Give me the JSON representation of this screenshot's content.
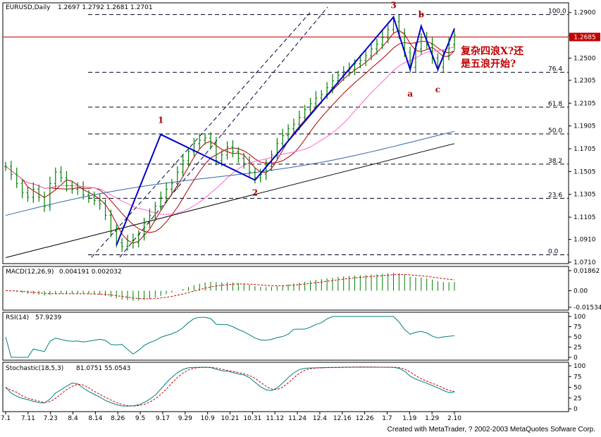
{
  "chart_data": {
    "type": "line",
    "symbol_header": "EURUSD,Daily",
    "ohlc_header": "1.2697 1.2792 1.2681 1.2701",
    "x_ticks": [
      "7.1",
      "7.11",
      "7.23",
      "8.4",
      "8.14",
      "8.26",
      "9.5",
      "9.17",
      "9.29",
      "10.9",
      "10.21",
      "10.31",
      "11.12",
      "11.24",
      "12.4",
      "12.16",
      "12.26",
      "1.7",
      "1.19",
      "1.29",
      "2.10"
    ],
    "main_panel": {
      "ylim": [
        1.071,
        1.296
      ],
      "y_ticks": [
        "1.2900",
        "1.2700",
        "1.2500",
        "1.2305",
        "1.2105",
        "1.1905",
        "1.1705",
        "1.1505",
        "1.1305",
        "1.1105",
        "1.0910",
        "1.0710"
      ],
      "current_price": "1.2685",
      "close_series": [
        1.155,
        1.148,
        1.14,
        1.132,
        1.128,
        1.135,
        1.128,
        1.12,
        1.14,
        1.15,
        1.145,
        1.138,
        1.135,
        1.136,
        1.13,
        1.128,
        1.125,
        1.122,
        1.112,
        1.098,
        1.088,
        1.085,
        1.09,
        1.088,
        1.095,
        1.105,
        1.112,
        1.12,
        1.128,
        1.135,
        1.14,
        1.15,
        1.16,
        1.168,
        1.175,
        1.178,
        1.18,
        1.175,
        1.16,
        1.165,
        1.172,
        1.168,
        1.162,
        1.158,
        1.15,
        1.145,
        1.148,
        1.155,
        1.165,
        1.175,
        1.182,
        1.188,
        1.192,
        1.198,
        1.205,
        1.21,
        1.215,
        1.218,
        1.224,
        1.23,
        1.235,
        1.238,
        1.24,
        1.245,
        1.248,
        1.252,
        1.258,
        1.262,
        1.268,
        1.275,
        1.282,
        1.272,
        1.255,
        1.242,
        1.258,
        1.268,
        1.262,
        1.25,
        1.242,
        1.252,
        1.262,
        1.27
      ],
      "fib_levels": [
        {
          "label": "100.0",
          "value": 1.2882
        },
        {
          "label": "76.4",
          "value": 1.2375
        },
        {
          "label": "61.8",
          "value": 1.207
        },
        {
          "label": "50.0",
          "value": 1.1835
        },
        {
          "label": "38.2",
          "value": 1.157
        },
        {
          "label": "23.6",
          "value": 1.127
        },
        {
          "label": "0.0",
          "value": 1.0775
        }
      ],
      "wave_labels": [
        {
          "label": "1",
          "x_index": 28,
          "value": 1.188
        },
        {
          "label": "2",
          "x_index": 45,
          "value": 1.138
        },
        {
          "label": "3",
          "x_index": 70,
          "value": 1.29
        },
        {
          "label": "a",
          "x_index": 73,
          "value": 1.226
        },
        {
          "label": "b",
          "x_index": 75,
          "value": 1.282
        },
        {
          "label": "c",
          "x_index": 78,
          "value": 1.23
        }
      ],
      "annotation_line1": "复杂四浪X?还",
      "annotation_line2": "是五浪开始?"
    },
    "macd_panel": {
      "label": "MACD(12,26,9)",
      "values_header": "0.004191 0.002032",
      "y_ticks": [
        "0.01862",
        "0.00",
        "-0.01534"
      ],
      "ylim": [
        -0.01534,
        0.01862
      ]
    },
    "rsi_panel": {
      "label": "RSI(14)",
      "value_header": "57.9239",
      "y_ticks": [
        "100",
        "75",
        "50",
        "25",
        "0"
      ],
      "ylim": [
        0,
        100
      ]
    },
    "stoch_panel": {
      "label": "Stochastic(18,5,3)",
      "values_header": "81.0751 55.0543",
      "y_ticks": [
        "100",
        "75",
        "50",
        "25",
        "0"
      ],
      "ylim": [
        0,
        100
      ]
    },
    "colors": {
      "price": "#008000",
      "ma_fast": "#b00000",
      "ma_mid": "#ff66cc",
      "ma_slow": "#3366aa",
      "ma_long": "#000000",
      "wave": "#0000cc",
      "current_price_bg": "#c00000",
      "macd_hist": "#008000",
      "macd_signal": "#cc0000",
      "osc_main": "#008080",
      "osc_signal": "#cc0000"
    }
  },
  "footer": "Created with MetaTrader, ? 2002-2003 MetaQuotes Sofware Corp."
}
